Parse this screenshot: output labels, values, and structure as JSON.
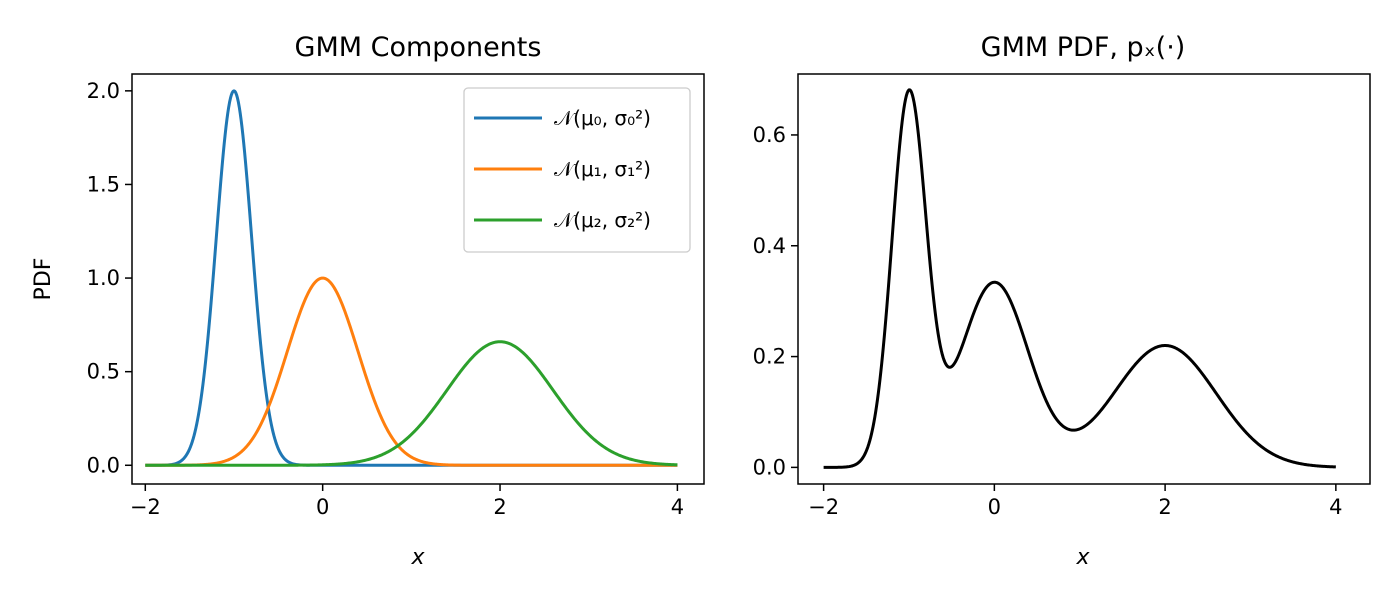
{
  "chart_data": [
    {
      "type": "line",
      "title": "GMM Components",
      "xlabel": "x",
      "ylabel": "PDF",
      "xlim": [
        -2.15,
        4.3
      ],
      "ylim": [
        -0.1,
        2.09
      ],
      "xticks": [
        -2,
        0,
        2,
        4
      ],
      "xtick_labels": [
        "−2",
        "0",
        "2",
        "4"
      ],
      "yticks": [
        0.0,
        0.5,
        1.0,
        1.5,
        2.0
      ],
      "ytick_labels": [
        "0.0",
        "0.5",
        "1.0",
        "1.5",
        "2.0"
      ],
      "legend": "top-right",
      "grid": false,
      "x_range": [
        -2,
        4
      ],
      "series": [
        {
          "name": "𝒩(μ₀, σ₀²)",
          "color": "#1f77b4",
          "mean": -1.0,
          "std": 0.2,
          "peak": 2.0
        },
        {
          "name": "𝒩(μ₁, σ₁²)",
          "color": "#ff7f0e",
          "mean": 0.0,
          "std": 0.4,
          "peak": 1.0
        },
        {
          "name": "𝒩(μ₂, σ₂²)",
          "color": "#2ca02c",
          "mean": 2.0,
          "std": 0.6,
          "peak": 0.66
        }
      ]
    },
    {
      "type": "line",
      "title": "GMM PDF, pₓ(·)",
      "xlabel": "x",
      "ylabel": "",
      "xlim": [
        -2.3,
        4.4
      ],
      "ylim": [
        -0.03,
        0.71
      ],
      "xticks": [
        -2,
        0,
        2,
        4
      ],
      "xtick_labels": [
        "−2",
        "0",
        "2",
        "4"
      ],
      "yticks": [
        0.0,
        0.2,
        0.4,
        0.6
      ],
      "ytick_labels": [
        "0.0",
        "0.2",
        "0.4",
        "0.6"
      ],
      "grid": false,
      "x_range": [
        -2,
        4
      ],
      "color": "#000000",
      "mixture_weights": [
        0.3333,
        0.3333,
        0.3333
      ]
    }
  ]
}
